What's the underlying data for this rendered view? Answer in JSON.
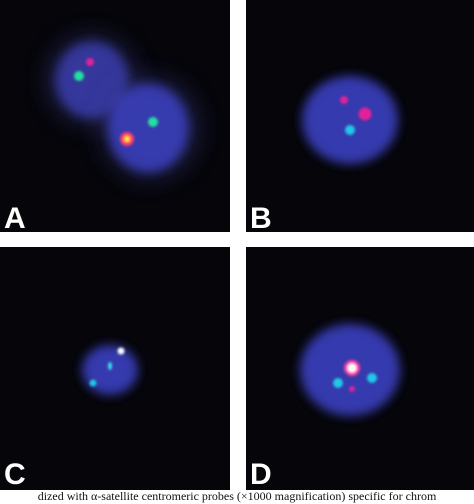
{
  "figure": {
    "panels": [
      {
        "label": "A"
      },
      {
        "label": "B"
      },
      {
        "label": "C"
      },
      {
        "label": "D"
      }
    ],
    "caption": "dized with α-satellite centromeric probes (×1000 magnification) specific for chrom"
  }
}
